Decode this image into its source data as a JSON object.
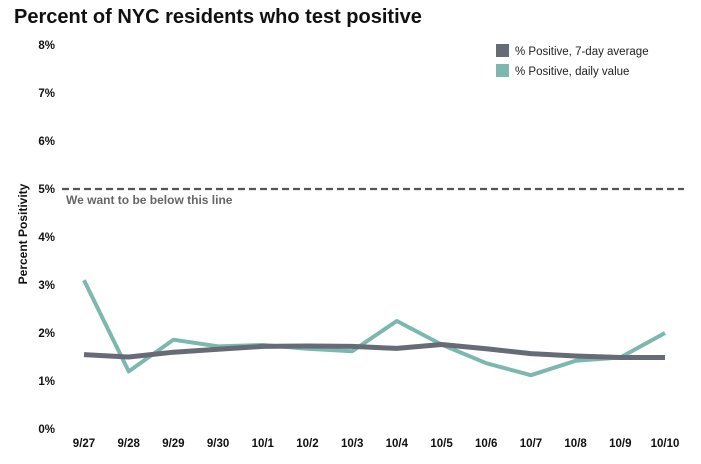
{
  "chart_data": {
    "type": "line",
    "title": "Percent of NYC residents who test positive",
    "xlabel": "",
    "ylabel": "Percent Positivity",
    "categories": [
      "9/27",
      "9/28",
      "9/29",
      "9/30",
      "10/1",
      "10/2",
      "10/3",
      "10/4",
      "10/5",
      "10/6",
      "10/7",
      "10/8",
      "10/9",
      "10/10"
    ],
    "ylim": [
      0,
      8
    ],
    "yticks": [
      0,
      1,
      2,
      3,
      4,
      5,
      6,
      7,
      8
    ],
    "ytick_labels": [
      "0%",
      "1%",
      "2%",
      "3%",
      "4%",
      "5%",
      "6%",
      "7%",
      "8%"
    ],
    "grid": false,
    "legend_position": "top-right",
    "series": [
      {
        "name": "% Positive, 7-day average",
        "color": "#666b75",
        "values": [
          1.55,
          1.5,
          1.6,
          1.66,
          1.72,
          1.73,
          1.72,
          1.68,
          1.76,
          1.67,
          1.57,
          1.52,
          1.49,
          1.49
        ]
      },
      {
        "name": "% Positive, daily value",
        "color": "#7cb8ae",
        "values": [
          3.1,
          1.2,
          1.86,
          1.72,
          1.75,
          1.67,
          1.62,
          2.25,
          1.76,
          1.37,
          1.12,
          1.42,
          1.49,
          2.0
        ]
      }
    ],
    "reference_line": {
      "value": 5,
      "label": "We want to be below this line",
      "color": "#555555"
    }
  }
}
